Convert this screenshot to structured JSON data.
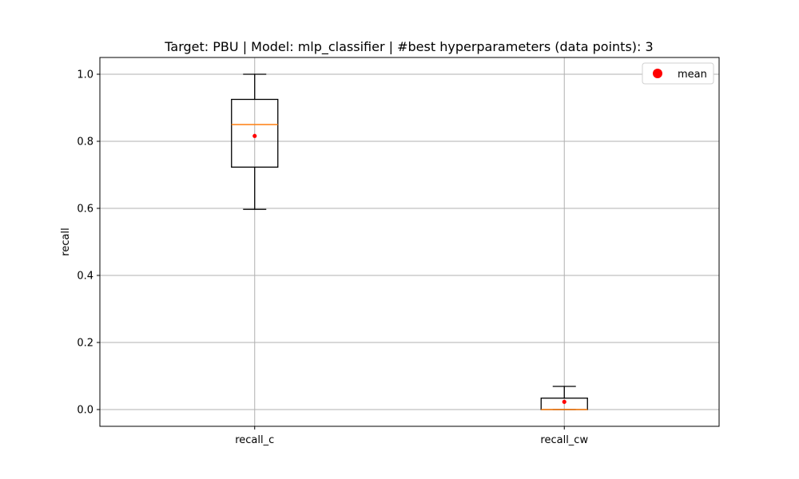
{
  "chart_data": {
    "type": "box",
    "title": "Target: PBU | Model: mlp_classifier | #best hyperparameters (data points): 3",
    "ylabel": "recall",
    "xlabel": "",
    "ylim": [
      -0.05,
      1.05
    ],
    "yticks": [
      0.0,
      0.2,
      0.4,
      0.6,
      0.8,
      1.0
    ],
    "ytick_labels": [
      "0.0",
      "0.2",
      "0.4",
      "0.6",
      "0.8",
      "1.0"
    ],
    "categories": [
      "recall_c",
      "recall_cw"
    ],
    "boxes": [
      {
        "category": "recall_c",
        "whisker_low": 0.597,
        "q1": 0.723,
        "median": 0.85,
        "q3": 0.925,
        "whisker_high": 1.0,
        "mean": 0.816
      },
      {
        "category": "recall_cw",
        "whisker_low": 0.0,
        "q1": 0.0,
        "median": 0.0,
        "q3": 0.034,
        "whisker_high": 0.069,
        "mean": 0.023
      }
    ],
    "grid": true,
    "legend": {
      "position": "top-right",
      "entries": [
        "mean"
      ]
    },
    "colors": {
      "box": "#000000",
      "median": "#ff7f0e",
      "mean": "#ff0000",
      "grid": "#b0b0b0"
    }
  }
}
